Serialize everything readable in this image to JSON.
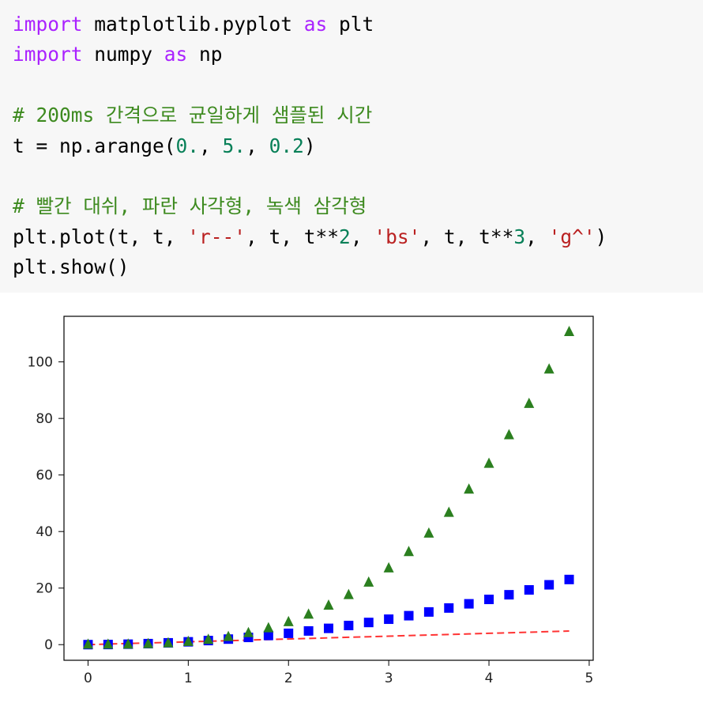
{
  "code": {
    "lines": [
      [
        {
          "t": "import",
          "c": "kw"
        },
        {
          "t": " matplotlib.pyplot ",
          "c": ""
        },
        {
          "t": "as",
          "c": "kw"
        },
        {
          "t": " plt",
          "c": ""
        }
      ],
      [
        {
          "t": "import",
          "c": "kw"
        },
        {
          "t": " numpy ",
          "c": ""
        },
        {
          "t": "as",
          "c": "kw"
        },
        {
          "t": " np",
          "c": ""
        }
      ],
      [],
      [
        {
          "t": "# 200ms 간격으로 균일하게 샘플된 시간",
          "c": "cm-green"
        }
      ],
      [
        {
          "t": "t = np.arange(",
          "c": ""
        },
        {
          "t": "0.",
          "c": "num"
        },
        {
          "t": ", ",
          "c": ""
        },
        {
          "t": "5.",
          "c": "num"
        },
        {
          "t": ", ",
          "c": ""
        },
        {
          "t": "0.2",
          "c": "num"
        },
        {
          "t": ")",
          "c": ""
        }
      ],
      [],
      [
        {
          "t": "# 빨간 대쉬, 파란 사각형, 녹색 삼각형",
          "c": "cm-green"
        }
      ],
      [
        {
          "t": "plt.plot(t, t, ",
          "c": ""
        },
        {
          "t": "'r--'",
          "c": "str"
        },
        {
          "t": ", t, t**",
          "c": ""
        },
        {
          "t": "2",
          "c": "num"
        },
        {
          "t": ", ",
          "c": ""
        },
        {
          "t": "'bs'",
          "c": "str"
        },
        {
          "t": ", t, t**",
          "c": ""
        },
        {
          "t": "3",
          "c": "num"
        },
        {
          "t": ", ",
          "c": ""
        },
        {
          "t": "'g^'",
          "c": "str"
        },
        {
          "t": ")",
          "c": ""
        }
      ],
      [
        {
          "t": "plt.show()",
          "c": ""
        }
      ]
    ]
  },
  "chart_data": {
    "type": "line",
    "title": "",
    "xlabel": "",
    "ylabel": "",
    "xlim": [
      -0.24,
      5.04
    ],
    "ylim": [
      -5.53,
      116.12
    ],
    "xticks": [
      0,
      1,
      2,
      3,
      4,
      5
    ],
    "yticks": [
      0,
      20,
      40,
      60,
      80,
      100
    ],
    "x": [
      0.0,
      0.2,
      0.4,
      0.6,
      0.8,
      1.0,
      1.2,
      1.4,
      1.6,
      1.8,
      2.0,
      2.2,
      2.4,
      2.6,
      2.8,
      3.0,
      3.2,
      3.4,
      3.6,
      3.8,
      4.0,
      4.2,
      4.4,
      4.6,
      4.8
    ],
    "series": [
      {
        "style": "dashed-line",
        "color": "#ff0000",
        "values": [
          0.0,
          0.2,
          0.4,
          0.6,
          0.8,
          1.0,
          1.2,
          1.4,
          1.6,
          1.8,
          2.0,
          2.2,
          2.4,
          2.6,
          2.8,
          3.0,
          3.2,
          3.4,
          3.6,
          3.8,
          4.0,
          4.2,
          4.4,
          4.6,
          4.8
        ]
      },
      {
        "style": "square",
        "color": "#0000ff",
        "values": [
          0.0,
          0.04,
          0.16,
          0.36,
          0.64,
          1.0,
          1.44,
          1.96,
          2.56,
          3.24,
          4.0,
          4.84,
          5.76,
          6.76,
          7.84,
          9.0,
          10.24,
          11.56,
          12.96,
          14.44,
          16.0,
          17.64,
          19.36,
          21.16,
          23.04
        ]
      },
      {
        "style": "triangle",
        "color": "#2b7f1f",
        "values": [
          0.0,
          0.008,
          0.064,
          0.216,
          0.512,
          1.0,
          1.728,
          2.744,
          4.096,
          5.832,
          8.0,
          10.648,
          13.824,
          17.576,
          21.952,
          27.0,
          32.768,
          39.304,
          46.656,
          54.872,
          64.0,
          74.088,
          85.184,
          97.336,
          110.592
        ]
      }
    ],
    "grid": false,
    "legend": "none"
  }
}
